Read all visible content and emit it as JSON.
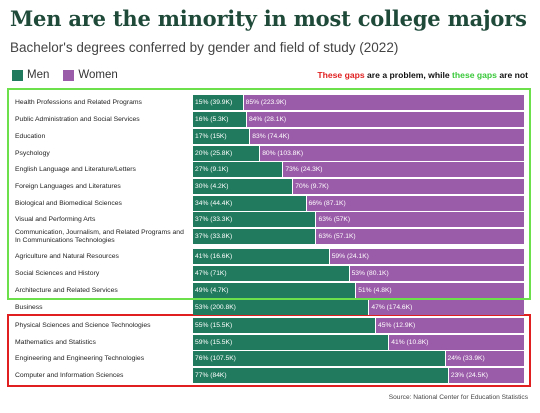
{
  "title": "Men are the minority in most college majors",
  "subtitle": "Bachelor's degrees conferred by gender and field of study (2022)",
  "legend": {
    "men": "Men",
    "women": "Women"
  },
  "note": {
    "part1": "These gaps",
    "part2": " are a problem, while ",
    "part3": "these gaps",
    "part4": " are not"
  },
  "source": "Source: National Center for Education Statistics",
  "colors": {
    "men": "#217a5e",
    "women": "#9a5ba8",
    "green_box": "#6be04a",
    "red_box": "#e02020",
    "title": "#1f4a3a"
  },
  "chart_data": {
    "type": "bar",
    "orientation": "horizontal",
    "stacked": "100%",
    "categories": [
      "Health Professions and Related Programs",
      "Public Administration and Social Services",
      "Education",
      "Psychology",
      "English Language and Literature/Letters",
      "Foreign Languages and Literatures",
      "Biological and Biomedical Sciences",
      "Visual and Performing Arts",
      "Communication, Journalism, and Related Programs and In Communications Technologies",
      "Agriculture and Natural Resources",
      "Social Sciences and History",
      "Architecture and Related Services",
      "Business",
      "Physical Sciences and Science Technologies",
      "Mathematics and Statistics",
      "Engineering and Engineering Technologies",
      "Computer and Information Sciences"
    ],
    "series": [
      {
        "name": "Men",
        "values": [
          15,
          16,
          17,
          20,
          27,
          30,
          34,
          37,
          37,
          41,
          47,
          49,
          53,
          55,
          59,
          76,
          77
        ],
        "labels": [
          "15% (39.9K)",
          "16% (5.3K)",
          "17% (15K)",
          "20% (25.8K)",
          "27% (9.1K)",
          "30% (4.2K)",
          "34% (44.4K)",
          "37% (33.3K)",
          "37% (33.8K)",
          "41% (16.6K)",
          "47% (71K)",
          "49% (4.7K)",
          "53% (200.8K)",
          "55% (15.5K)",
          "59% (15.5K)",
          "76% (107.5K)",
          "77% (84K)"
        ]
      },
      {
        "name": "Women",
        "values": [
          85,
          84,
          83,
          80,
          73,
          70,
          66,
          63,
          63,
          59,
          53,
          51,
          47,
          45,
          41,
          24,
          23
        ],
        "labels": [
          "85% (223.9K)",
          "84% (28.1K)",
          "83% (74.4K)",
          "80% (103.8K)",
          "73% (24.3K)",
          "70% (9.7K)",
          "66% (87.1K)",
          "63% (57K)",
          "63% (57.1K)",
          "59% (24.1K)",
          "53% (80.1K)",
          "51% (4.8K)",
          "47% (174.6K)",
          "45% (12.9K)",
          "41% (10.8K)",
          "24% (33.9K)",
          "23% (24.5K)"
        ]
      }
    ],
    "xlim": [
      0,
      100
    ],
    "legend_position": "top-left"
  }
}
